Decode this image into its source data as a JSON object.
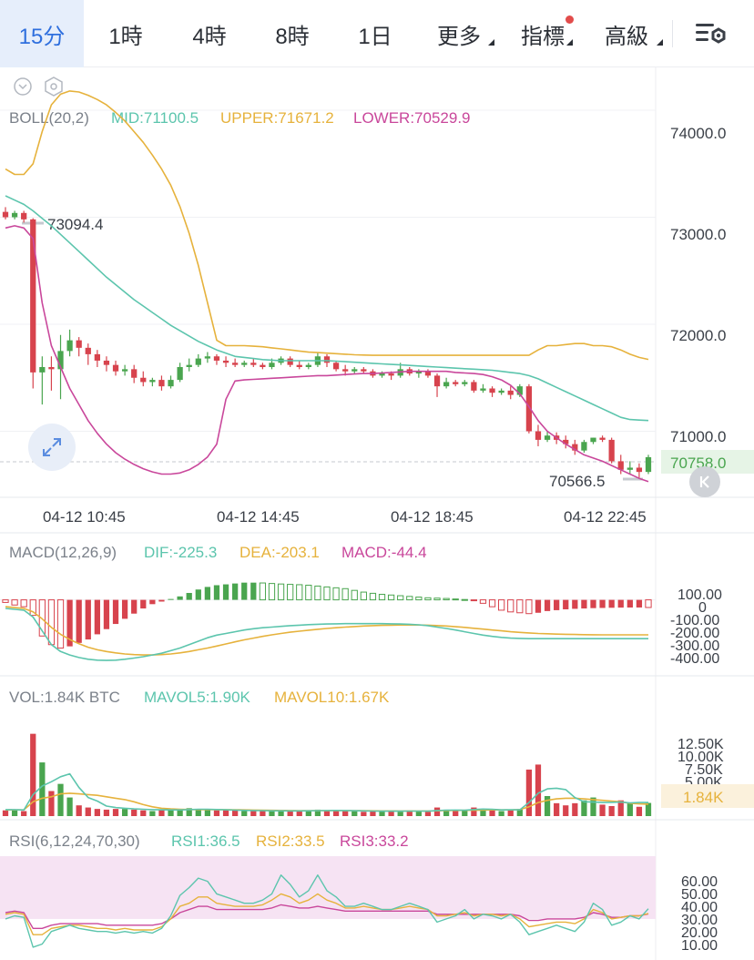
{
  "tabs": [
    {
      "label": "15分",
      "active": true
    },
    {
      "label": "1時"
    },
    {
      "label": "4時"
    },
    {
      "label": "8時"
    },
    {
      "label": "1日"
    },
    {
      "label": "更多",
      "caret": true
    },
    {
      "label": "指標",
      "caret": true,
      "dot": true
    },
    {
      "label": "高級",
      "caret": true
    }
  ],
  "settings_icon": "chart-settings-icon",
  "colors": {
    "up": "#4aa54f",
    "down": "#d7434d",
    "mid": "#5cc5ad",
    "upper": "#e6b23c",
    "lower": "#c9479b",
    "rsi_band": "#f6e3f3",
    "active_tab": "#2f6fde"
  },
  "main": {
    "indicator_name": "BOLL(20,2)",
    "mid_label": "MID:71100.5",
    "upper_label": "UPPER:71671.2",
    "lower_label": "LOWER:70529.9",
    "y_ticks": [
      "74000.0",
      "73000.0",
      "72000.0",
      "71000.0"
    ],
    "current_price": "70758.0",
    "high_label": "73094.4",
    "low_label": "70566.5"
  },
  "time_labels": [
    "04-12 10:45",
    "04-12 14:45",
    "04-12 18:45",
    "04-12 22:45"
  ],
  "macd": {
    "name": "MACD(12,26,9)",
    "dif_label": "DIF:-225.3",
    "dea_label": "DEA:-203.1",
    "macd_label": "MACD:-44.4",
    "y_ticks": [
      "100.00",
      "0",
      "-100.00",
      "-200.00",
      "-300.00",
      "-400.00"
    ]
  },
  "vol": {
    "name": "VOL:1.84K BTC",
    "mavol5_label": "MAVOL5:1.90K",
    "mavol10_label": "MAVOL10:1.67K",
    "y_ticks": [
      "12.50K",
      "10.00K",
      "7.50K",
      "5.00K"
    ],
    "current": "1.84K"
  },
  "rsi": {
    "name": "RSI(6,12,24,70,30)",
    "rsi1_label": "RSI1:36.5",
    "rsi2_label": "RSI2:33.5",
    "rsi3_label": "RSI3:33.2",
    "y_ticks": [
      "60.00",
      "50.00",
      "40.00",
      "30.00",
      "20.00",
      "10.00"
    ]
  },
  "chart_data": {
    "type": "candlestick",
    "interval": "15分",
    "price_ylim": [
      70400,
      74400
    ],
    "candles": [
      {
        "o": 73050,
        "h": 73094.4,
        "c": 73000,
        "l": 72980
      },
      {
        "o": 73000,
        "h": 73060,
        "c": 73040,
        "l": 72980
      },
      {
        "o": 73040,
        "h": 73060,
        "c": 72980,
        "l": 72950
      },
      {
        "o": 72980,
        "h": 72990,
        "c": 71550,
        "l": 71400
      },
      {
        "o": 71550,
        "h": 71700,
        "c": 71600,
        "l": 71250
      },
      {
        "o": 71600,
        "h": 71700,
        "c": 71580,
        "l": 71380
      },
      {
        "o": 71580,
        "h": 71900,
        "c": 71750,
        "l": 71300
      },
      {
        "o": 71750,
        "h": 71950,
        "c": 71850,
        "l": 71700
      },
      {
        "o": 71850,
        "h": 71880,
        "c": 71780,
        "l": 71700
      },
      {
        "o": 71780,
        "h": 71820,
        "c": 71720,
        "l": 71620
      },
      {
        "o": 71720,
        "h": 71760,
        "c": 71660,
        "l": 71600
      },
      {
        "o": 71660,
        "h": 71700,
        "c": 71620,
        "l": 71560
      },
      {
        "o": 71620,
        "h": 71660,
        "c": 71560,
        "l": 71520
      },
      {
        "o": 71560,
        "h": 71620,
        "c": 71580,
        "l": 71520
      },
      {
        "o": 71580,
        "h": 71620,
        "c": 71500,
        "l": 71450
      },
      {
        "o": 71500,
        "h": 71560,
        "c": 71460,
        "l": 71420
      },
      {
        "o": 71460,
        "h": 71500,
        "c": 71480,
        "l": 71420
      },
      {
        "o": 71480,
        "h": 71520,
        "c": 71420,
        "l": 71380
      },
      {
        "o": 71420,
        "h": 71520,
        "c": 71480,
        "l": 71400
      },
      {
        "o": 71480,
        "h": 71640,
        "c": 71600,
        "l": 71460
      },
      {
        "o": 71600,
        "h": 71680,
        "c": 71620,
        "l": 71560
      },
      {
        "o": 71620,
        "h": 71720,
        "c": 71680,
        "l": 71600
      },
      {
        "o": 71680,
        "h": 71740,
        "c": 71700,
        "l": 71640
      },
      {
        "o": 71700,
        "h": 71720,
        "c": 71660,
        "l": 71620
      },
      {
        "o": 71660,
        "h": 71700,
        "c": 71640,
        "l": 71600
      },
      {
        "o": 71640,
        "h": 71680,
        "c": 71620,
        "l": 71600
      },
      {
        "o": 71620,
        "h": 71660,
        "c": 71640,
        "l": 71600
      },
      {
        "o": 71640,
        "h": 71680,
        "c": 71620,
        "l": 71600
      },
      {
        "o": 71620,
        "h": 71640,
        "c": 71600,
        "l": 71580
      },
      {
        "o": 71600,
        "h": 71680,
        "c": 71640,
        "l": 71580
      },
      {
        "o": 71640,
        "h": 71700,
        "c": 71680,
        "l": 71620
      },
      {
        "o": 71680,
        "h": 71700,
        "c": 71620,
        "l": 71600
      },
      {
        "o": 71620,
        "h": 71660,
        "c": 71600,
        "l": 71580
      },
      {
        "o": 71600,
        "h": 71640,
        "c": 71620,
        "l": 71580
      },
      {
        "o": 71620,
        "h": 71740,
        "c": 71700,
        "l": 71600
      },
      {
        "o": 71700,
        "h": 71720,
        "c": 71640,
        "l": 71600
      },
      {
        "o": 71640,
        "h": 71660,
        "c": 71580,
        "l": 71560
      },
      {
        "o": 71580,
        "h": 71620,
        "c": 71560,
        "l": 71520
      },
      {
        "o": 71560,
        "h": 71600,
        "c": 71580,
        "l": 71540
      },
      {
        "o": 71580,
        "h": 71600,
        "c": 71560,
        "l": 71540
      },
      {
        "o": 71560,
        "h": 71580,
        "c": 71520,
        "l": 71500
      },
      {
        "o": 71520,
        "h": 71560,
        "c": 71540,
        "l": 71500
      },
      {
        "o": 71540,
        "h": 71560,
        "c": 71520,
        "l": 71480
      },
      {
        "o": 71520,
        "h": 71640,
        "c": 71580,
        "l": 71500
      },
      {
        "o": 71580,
        "h": 71600,
        "c": 71540,
        "l": 71520
      },
      {
        "o": 71540,
        "h": 71580,
        "c": 71560,
        "l": 71500
      },
      {
        "o": 71560,
        "h": 71580,
        "c": 71520,
        "l": 71500
      },
      {
        "o": 71520,
        "h": 71540,
        "c": 71420,
        "l": 71320
      },
      {
        "o": 71420,
        "h": 71500,
        "c": 71460,
        "l": 71400
      },
      {
        "o": 71460,
        "h": 71480,
        "c": 71440,
        "l": 71420
      },
      {
        "o": 71440,
        "h": 71480,
        "c": 71460,
        "l": 71420
      },
      {
        "o": 71460,
        "h": 71480,
        "c": 71380,
        "l": 71360
      },
      {
        "o": 71380,
        "h": 71440,
        "c": 71400,
        "l": 71360
      },
      {
        "o": 71400,
        "h": 71420,
        "c": 71360,
        "l": 71320
      },
      {
        "o": 71360,
        "h": 71400,
        "c": 71380,
        "l": 71340
      },
      {
        "o": 71380,
        "h": 71420,
        "c": 71340,
        "l": 71300
      },
      {
        "o": 71340,
        "h": 71440,
        "c": 71420,
        "l": 71320
      },
      {
        "o": 71420,
        "h": 71440,
        "c": 71000,
        "l": 70980
      },
      {
        "o": 71000,
        "h": 71060,
        "c": 70920,
        "l": 70860
      },
      {
        "o": 70920,
        "h": 71000,
        "c": 70960,
        "l": 70900
      },
      {
        "o": 70960,
        "h": 70990,
        "c": 70920,
        "l": 70880
      },
      {
        "o": 70920,
        "h": 70960,
        "c": 70880,
        "l": 70840
      },
      {
        "o": 70880,
        "h": 70920,
        "c": 70820,
        "l": 70780
      },
      {
        "o": 70820,
        "h": 70920,
        "c": 70900,
        "l": 70800
      },
      {
        "o": 70900,
        "h": 70940,
        "c": 70940,
        "l": 70880
      },
      {
        "o": 70940,
        "h": 70960,
        "c": 70920,
        "l": 70900
      },
      {
        "o": 70920,
        "h": 70940,
        "c": 70720,
        "l": 70700
      },
      {
        "o": 70720,
        "h": 70780,
        "c": 70640,
        "l": 70600
      },
      {
        "o": 70640,
        "h": 70720,
        "c": 70660,
        "l": 70600
      },
      {
        "o": 70660,
        "h": 70700,
        "c": 70620,
        "l": 70566.5
      },
      {
        "o": 70620,
        "h": 70780,
        "c": 70758,
        "l": 70600
      }
    ],
    "boll_mid": [
      73200,
      73160,
      73120,
      73060,
      72990,
      72920,
      72840,
      72760,
      72680,
      72600,
      72520,
      72440,
      72370,
      72300,
      72230,
      72170,
      72110,
      72050,
      71990,
      71940,
      71890,
      71840,
      71800,
      71760,
      71730,
      71700,
      71690,
      71680,
      71670,
      71665,
      71660,
      71660,
      71660,
      71660,
      71660,
      71660,
      71655,
      71650,
      71645,
      71640,
      71635,
      71630,
      71625,
      71620,
      71615,
      71610,
      71605,
      71600,
      71595,
      71590,
      71585,
      71580,
      71575,
      71570,
      71560,
      71550,
      71540,
      71520,
      71490,
      71450,
      71410,
      71370,
      71330,
      71290,
      71250,
      71210,
      71170,
      71130,
      71110,
      71105,
      71100.5
    ],
    "boll_upper": [
      73450,
      73400,
      73400,
      73500,
      73800,
      74050,
      74150,
      74180,
      74170,
      74140,
      74100,
      74050,
      73980,
      73900,
      73800,
      73700,
      73580,
      73450,
      73300,
      73100,
      72850,
      72550,
      72200,
      71850,
      71800,
      71800,
      71800,
      71795,
      71790,
      71780,
      71770,
      71760,
      71750,
      71740,
      71735,
      71730,
      71725,
      71720,
      71715,
      71712,
      71710,
      71710,
      71710,
      71710,
      71710,
      71710,
      71710,
      71710,
      71710,
      71710,
      71710,
      71710,
      71710,
      71710,
      71710,
      71710,
      71710,
      71710,
      71760,
      71800,
      71800,
      71810,
      71820,
      71820,
      71800,
      71800,
      71790,
      71760,
      71720,
      71690,
      71671.2
    ],
    "boll_lower": [
      72900,
      72920,
      72900,
      72800,
      72200,
      71800,
      71600,
      71400,
      71250,
      71100,
      70980,
      70880,
      70800,
      70740,
      70690,
      70650,
      70620,
      70600,
      70600,
      70610,
      70640,
      70690,
      70760,
      70880,
      71300,
      71470,
      71480,
      71485,
      71490,
      71495,
      71500,
      71505,
      71510,
      71515,
      71520,
      71520,
      71525,
      71530,
      71535,
      71540,
      71540,
      71545,
      71550,
      71555,
      71560,
      71560,
      71560,
      71560,
      71560,
      71550,
      71545,
      71540,
      71530,
      71510,
      71480,
      71430,
      71350,
      71230,
      71100,
      71000,
      70940,
      70880,
      70830,
      70780,
      70750,
      70720,
      70680,
      70640,
      70600,
      70560,
      70529.9
    ],
    "macd_ylim": [
      -420,
      130
    ],
    "macd_hist": [
      -15,
      -30,
      -40,
      -90,
      -210,
      -260,
      -280,
      -270,
      -250,
      -230,
      -200,
      -170,
      -140,
      -110,
      -80,
      -50,
      -25,
      -10,
      5,
      20,
      40,
      60,
      75,
      85,
      90,
      95,
      100,
      100,
      98,
      95,
      92,
      90,
      88,
      85,
      80,
      75,
      70,
      65,
      55,
      45,
      38,
      32,
      28,
      24,
      20,
      16,
      12,
      10,
      8,
      5,
      2,
      -5,
      -20,
      -40,
      -60,
      -70,
      -75,
      -80,
      -75,
      -65,
      -60,
      -55,
      -52,
      -50,
      -48,
      -47,
      -46,
      -45,
      -44.5,
      -44.4,
      -44.4
    ],
    "macd_dif": [
      -50,
      -55,
      -60,
      -100,
      -180,
      -260,
      -300,
      -320,
      -335,
      -345,
      -350,
      -352,
      -350,
      -345,
      -338,
      -330,
      -320,
      -310,
      -295,
      -280,
      -260,
      -240,
      -220,
      -205,
      -195,
      -185,
      -175,
      -168,
      -162,
      -158,
      -154,
      -150,
      -147,
      -144,
      -142,
      -140,
      -139,
      -138,
      -138,
      -138,
      -138,
      -138,
      -139,
      -140,
      -142,
      -145,
      -150,
      -158,
      -166,
      -175,
      -185,
      -195,
      -205,
      -212,
      -218,
      -222,
      -224,
      -225.3,
      -225.3,
      -225.3,
      -225.3,
      -225.3,
      -225.3,
      -225.3,
      -225.3,
      -225.3,
      -225.3,
      -225.3,
      -225.3,
      -225.3,
      -225.3
    ],
    "macd_dea": [
      -40,
      -45,
      -50,
      -70,
      -110,
      -160,
      -200,
      -230,
      -255,
      -275,
      -290,
      -300,
      -308,
      -314,
      -318,
      -320,
      -320,
      -318,
      -314,
      -308,
      -300,
      -290,
      -280,
      -268,
      -256,
      -244,
      -232,
      -222,
      -212,
      -203,
      -195,
      -188,
      -182,
      -176,
      -171,
      -166,
      -162,
      -158,
      -155,
      -152,
      -150,
      -148,
      -147,
      -146,
      -146,
      -146,
      -147,
      -149,
      -152,
      -156,
      -160,
      -165,
      -170,
      -175,
      -180,
      -185,
      -189,
      -192,
      -195,
      -197,
      -199,
      -200,
      -201,
      -202,
      -202.5,
      -203,
      -203,
      -203.1,
      -203.1,
      -203.1,
      -203.1
    ],
    "vol_ylim": [
      0,
      14000
    ],
    "volumes": [
      800,
      900,
      700,
      11500,
      7500,
      3500,
      4500,
      2600,
      1500,
      1200,
      1000,
      900,
      1000,
      1000,
      900,
      800,
      700,
      900,
      1000,
      900,
      1100,
      1000,
      900,
      800,
      900,
      800,
      700,
      800,
      700,
      700,
      800,
      700,
      700,
      800,
      900,
      800,
      700,
      800,
      700,
      600,
      700,
      800,
      700,
      600,
      800,
      700,
      600,
      1200,
      900,
      700,
      700,
      1200,
      900,
      800,
      700,
      800,
      1000,
      6500,
      7200,
      2800,
      1800,
      1500,
      1800,
      2200,
      2600,
      1600,
      1400,
      2200,
      1800,
      1300,
      1840
    ],
    "mavol5": [
      900,
      900,
      850,
      3000,
      4200,
      4800,
      5500,
      5900,
      4000,
      2600,
      2100,
      1400,
      1200,
      1100,
      1000,
      950,
      900,
      880,
      870,
      870,
      900,
      950,
      960,
      920,
      880,
      840,
      800,
      780,
      760,
      740,
      740,
      730,
      730,
      740,
      760,
      780,
      790,
      780,
      750,
      720,
      700,
      690,
      690,
      690,
      700,
      700,
      690,
      780,
      830,
      840,
      820,
      920,
      980,
      960,
      860,
      880,
      880,
      1900,
      3200,
      3800,
      3900,
      3700,
      2600,
      2000,
      1960,
      1900,
      1920,
      1960,
      1840,
      1900,
      1900
    ],
    "mavol10": [
      850,
      870,
      860,
      2000,
      2500,
      2700,
      3100,
      3200,
      3100,
      3000,
      2900,
      2700,
      2500,
      2300,
      2000,
      1600,
      1300,
      1100,
      1000,
      950,
      920,
      900,
      900,
      900,
      900,
      880,
      860,
      840,
      820,
      800,
      790,
      780,
      770,
      770,
      770,
      770,
      770,
      760,
      760,
      750,
      740,
      730,
      720,
      710,
      710,
      710,
      710,
      740,
      770,
      790,
      800,
      820,
      840,
      860,
      860,
      870,
      900,
      1300,
      1900,
      2200,
      2400,
      2500,
      2500,
      2400,
      2300,
      2200,
      2100,
      2000,
      1800,
      1700,
      1670
    ],
    "rsi_ylim": [
      5,
      70
    ],
    "rsi_band": [
      30,
      70
    ],
    "rsi1": [
      30,
      32,
      31,
      12,
      14,
      22,
      24,
      26,
      24,
      23,
      22,
      22,
      21,
      22,
      21,
      22,
      21,
      24,
      32,
      45,
      50,
      56,
      54,
      46,
      44,
      42,
      40,
      40,
      42,
      46,
      58,
      52,
      44,
      48,
      58,
      48,
      44,
      38,
      38,
      40,
      38,
      36,
      36,
      38,
      40,
      38,
      36,
      28,
      30,
      32,
      36,
      30,
      33,
      32,
      30,
      33,
      28,
      20,
      22,
      24,
      26,
      24,
      22,
      28,
      40,
      36,
      26,
      28,
      32,
      30,
      36.5
    ],
    "rsi2": [
      33,
      34,
      33,
      20,
      20,
      24,
      25,
      26,
      26,
      25,
      24,
      24,
      23,
      24,
      23,
      23,
      23,
      25,
      30,
      38,
      40,
      44,
      44,
      40,
      39,
      38,
      38,
      38,
      39,
      42,
      46,
      44,
      40,
      42,
      46,
      42,
      40,
      37,
      37,
      38,
      37,
      36,
      36,
      37,
      38,
      37,
      36,
      32,
      32,
      33,
      34,
      32,
      33,
      33,
      32,
      33,
      30,
      25,
      26,
      27,
      28,
      28,
      27,
      30,
      36,
      34,
      30,
      31,
      32,
      32,
      33.5
    ],
    "rsi3": [
      34,
      35,
      34,
      24,
      24,
      26,
      27,
      27,
      27,
      27,
      27,
      26,
      26,
      26,
      26,
      26,
      26,
      27,
      30,
      34,
      36,
      38,
      38,
      36,
      36,
      36,
      36,
      36,
      36,
      37,
      39,
      38,
      37,
      37,
      38,
      37,
      36,
      35,
      35,
      35,
      35,
      35,
      35,
      35,
      35,
      35,
      35,
      33,
      33,
      33,
      33,
      33,
      33,
      33,
      33,
      33,
      32,
      29,
      29,
      30,
      30,
      30,
      30,
      31,
      34,
      33,
      31,
      31,
      32,
      32,
      33.2
    ]
  }
}
